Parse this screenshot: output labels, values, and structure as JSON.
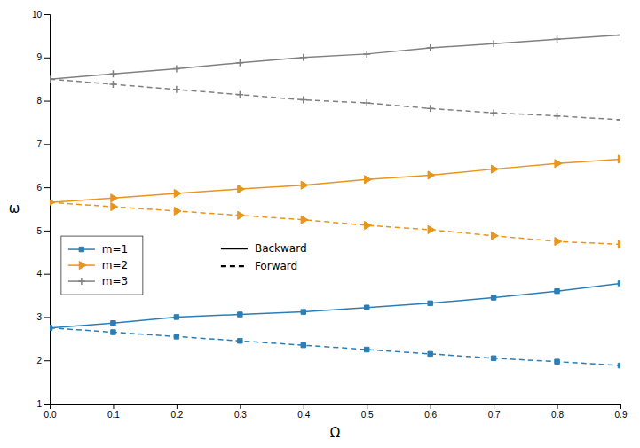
{
  "chart_data": {
    "type": "line",
    "xlabel": "Ω",
    "ylabel": "ω",
    "x": [
      0,
      0.1,
      0.2,
      0.3,
      0.4,
      0.5,
      0.6,
      0.7,
      0.8,
      0.9
    ],
    "xlim": [
      0,
      0.9
    ],
    "ylim": [
      1,
      10
    ],
    "xticks": [
      {
        "value": 0,
        "label": "0.0"
      },
      0.1,
      0.2,
      0.3,
      0.4,
      0.5,
      0.6,
      0.7,
      0.8,
      0.9
    ],
    "yticks": [
      1,
      2,
      3,
      4,
      5,
      6,
      7,
      8,
      9,
      10
    ],
    "grid": false,
    "legend": "lower left",
    "series": [
      {
        "name": "m=1",
        "color": "#2b7eb5",
        "marker": "square",
        "line_style": "solid",
        "values": [
          2.75,
          2.86,
          3.0,
          3.06,
          3.12,
          3.22,
          3.32,
          3.45,
          3.6,
          3.78
        ]
      },
      {
        "name": "m=1",
        "color": "#2b7eb5",
        "marker": "square",
        "line_style": "dashed",
        "values": [
          2.75,
          2.65,
          2.55,
          2.45,
          2.35,
          2.25,
          2.15,
          2.05,
          1.97,
          1.88
        ]
      },
      {
        "name": "m=2",
        "color": "#e8951a",
        "marker": "triangle-right",
        "line_style": "solid",
        "values": [
          5.65,
          5.75,
          5.86,
          5.96,
          6.05,
          6.18,
          6.28,
          6.42,
          6.55,
          6.65
        ]
      },
      {
        "name": "m=2",
        "color": "#e8951a",
        "marker": "triangle-right",
        "line_style": "dashed",
        "values": [
          5.65,
          5.55,
          5.45,
          5.35,
          5.25,
          5.12,
          5.02,
          4.88,
          4.75,
          4.68
        ]
      },
      {
        "name": "m=3",
        "color": "#808080",
        "marker": "plus",
        "line_style": "solid",
        "values": [
          8.5,
          8.62,
          8.74,
          8.88,
          9.0,
          9.08,
          9.22,
          9.32,
          9.42,
          9.52
        ]
      },
      {
        "name": "m=3",
        "color": "#808080",
        "marker": "plus",
        "line_style": "dashed",
        "values": [
          8.5,
          8.38,
          8.26,
          8.14,
          8.02,
          7.95,
          7.82,
          7.72,
          7.65,
          7.56
        ]
      }
    ],
    "style_legend": [
      {
        "line_style": "solid",
        "label": "Backward"
      },
      {
        "line_style": "dashed",
        "label": "Forward"
      }
    ]
  }
}
